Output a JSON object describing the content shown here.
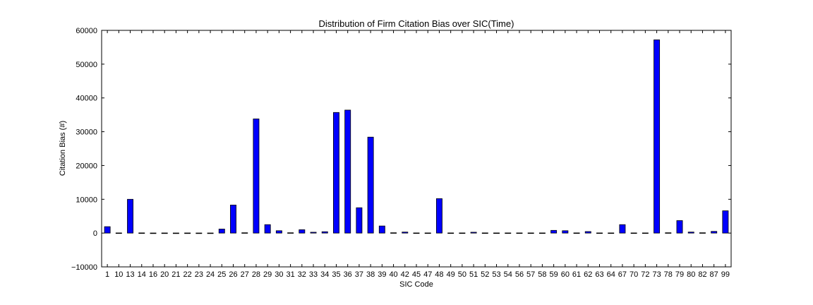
{
  "chart_data": {
    "type": "bar",
    "title": "Distribution of Firm Citation Bias over SIC(Time)",
    "xlabel": "SIC Code",
    "ylabel": "Citation Bias (#)",
    "ylim": [
      -10000,
      60000
    ],
    "yticks": [
      -10000,
      0,
      10000,
      20000,
      30000,
      40000,
      50000,
      60000
    ],
    "grid": false,
    "legend": "none",
    "bar_color": "#0000ff",
    "categories": [
      "1",
      "10",
      "13",
      "14",
      "16",
      "20",
      "21",
      "22",
      "23",
      "24",
      "25",
      "26",
      "27",
      "28",
      "29",
      "30",
      "31",
      "32",
      "33",
      "34",
      "35",
      "36",
      "37",
      "38",
      "39",
      "40",
      "42",
      "45",
      "47",
      "48",
      "49",
      "50",
      "51",
      "52",
      "53",
      "54",
      "56",
      "57",
      "58",
      "59",
      "60",
      "61",
      "62",
      "63",
      "64",
      "67",
      "70",
      "72",
      "73",
      "78",
      "79",
      "80",
      "82",
      "87",
      "99"
    ],
    "values": [
      1900,
      50,
      10000,
      60,
      30,
      40,
      30,
      40,
      30,
      30,
      1200,
      8300,
      100,
      33800,
      2500,
      700,
      100,
      1000,
      250,
      400,
      35700,
      36400,
      7500,
      28400,
      2100,
      100,
      300,
      50,
      50,
      10200,
      50,
      50,
      250,
      60,
      50,
      50,
      50,
      50,
      50,
      800,
      700,
      60,
      450,
      50,
      50,
      2500,
      50,
      50,
      57200,
      100,
      3700,
      300,
      100,
      500,
      6600
    ]
  }
}
